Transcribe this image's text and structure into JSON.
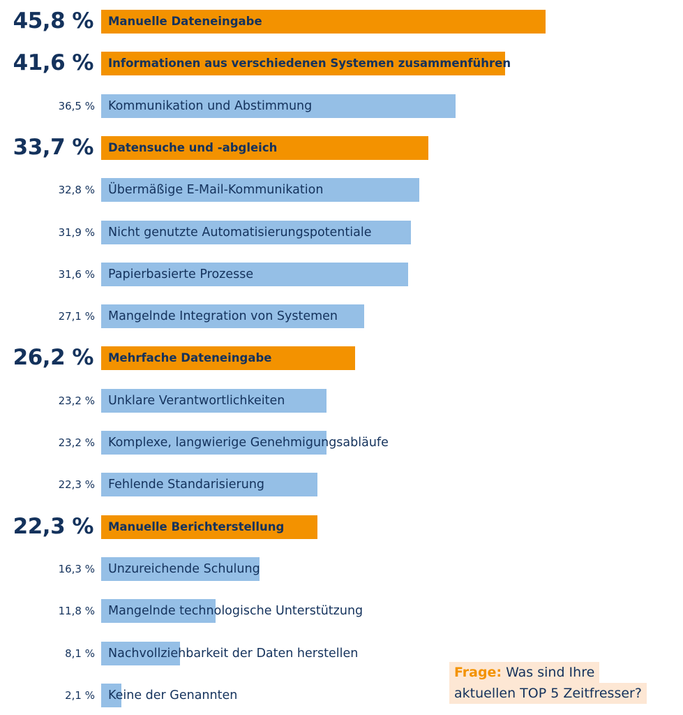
{
  "chart_data": {
    "type": "bar",
    "orientation": "horizontal",
    "percent_suffix": "%",
    "categories": [
      "Manuelle Dateneingabe",
      "Informationen aus verschiedenen Systemen zusammenführen",
      "Kommunikation und Abstimmung",
      "Datensuche und -abgleich",
      "Übermäßige E-Mail-Kommunikation",
      "Nicht genutzte Automatisierungspotentiale",
      "Papierbasierte Prozesse",
      "Mangelnde Integration von Systemen",
      "Mehrfache Dateneingabe",
      "Unklare Verantwortlichkeiten",
      "Komplexe, langwierige Genehmigungsabläufe",
      "Fehlende Standarisierung",
      "Manuelle Berichterstellung",
      "Unzureichende Schulung",
      "Mangelnde technologische Unterstützung",
      "Nachvollziehbarkeit der Daten herstellen",
      "Keine der Genannten"
    ],
    "values": [
      45.8,
      41.6,
      36.5,
      33.7,
      32.8,
      31.9,
      31.6,
      27.1,
      26.2,
      23.2,
      23.2,
      22.3,
      22.3,
      16.3,
      11.8,
      8.1,
      2.1
    ],
    "value_labels": [
      "45,8 %",
      "41,6 %",
      "36,5 %",
      "33,7 %",
      "32,8 %",
      "31,9 %",
      "31,6 %",
      "27,1 %",
      "26,2 %",
      "23,2 %",
      "23,2 %",
      "22,3 %",
      "22,3 %",
      "16,3 %",
      "11,8 %",
      "8,1 %",
      "2,1 %"
    ],
    "highlighted": [
      true,
      true,
      false,
      true,
      false,
      false,
      false,
      false,
      true,
      false,
      false,
      false,
      true,
      false,
      false,
      false,
      false
    ],
    "xlim": [
      0,
      45.8
    ],
    "grid": false,
    "colors": {
      "highlight": "#f39200",
      "normal": "#95bfe6",
      "text": "#14325c",
      "question_accent": "#f39200",
      "question_bg": "#fde7d4"
    }
  },
  "question": {
    "label": "Frage:",
    "line1_rest": " Was sind Ihre",
    "line2": "aktuellen TOP 5 Zeitfresser?"
  }
}
